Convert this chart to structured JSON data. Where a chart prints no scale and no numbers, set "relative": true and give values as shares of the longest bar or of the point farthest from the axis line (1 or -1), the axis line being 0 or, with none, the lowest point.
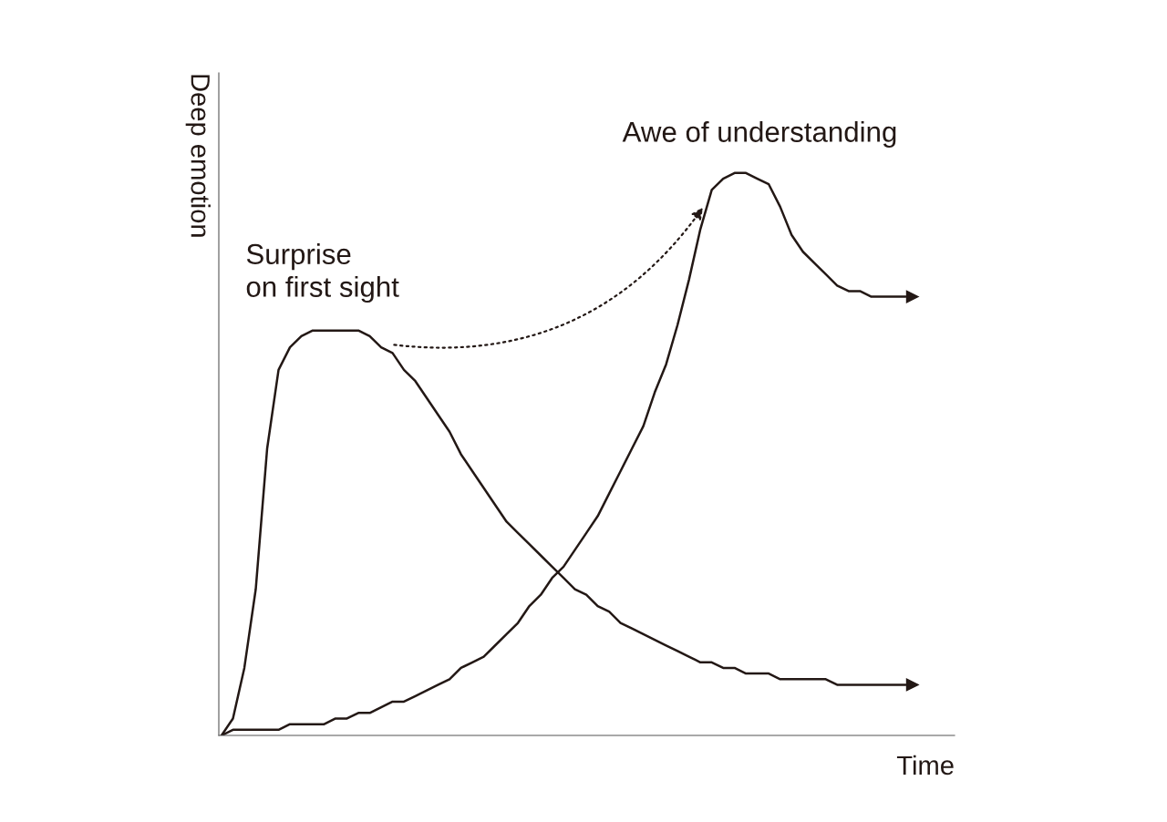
{
  "chart_data": {
    "type": "line",
    "relative": true,
    "xlabel": "Time",
    "ylabel": "Deep emotion",
    "categories": [
      null,
      null,
      null,
      null,
      null,
      null,
      null,
      null,
      null,
      null,
      null,
      null,
      null,
      null,
      null,
      null,
      null,
      null,
      null,
      null,
      null,
      null,
      null,
      null,
      null,
      null,
      null,
      null,
      null,
      null,
      null,
      null,
      null,
      null,
      null,
      null,
      null,
      null,
      null,
      null,
      null,
      null,
      null,
      null,
      null,
      null,
      null,
      null,
      null,
      null,
      null,
      null,
      null,
      null,
      null,
      null,
      null,
      null,
      null,
      null,
      null
    ],
    "series": [
      {
        "name": "Surprise\non first sight",
        "color": "#231815",
        "values": [
          0,
          0.03,
          0.12,
          0.26,
          0.51,
          0.65,
          0.69,
          0.71,
          0.72,
          0.72,
          0.72,
          0.72,
          0.72,
          0.71,
          0.69,
          0.68,
          0.65,
          0.63,
          0.6,
          0.57,
          0.54,
          0.5,
          0.47,
          0.44,
          0.41,
          0.38,
          0.36,
          0.34,
          0.32,
          0.3,
          0.28,
          0.26,
          0.25,
          0.23,
          0.22,
          0.2,
          0.19,
          0.18,
          0.17,
          0.16,
          0.15,
          0.14,
          0.13,
          0.13,
          0.12,
          0.12,
          0.11,
          0.11,
          0.11,
          0.1,
          0.1,
          0.1,
          0.1,
          0.1,
          0.09,
          0.09,
          0.09,
          0.09,
          0.09,
          0.09,
          0.09
        ]
      },
      {
        "name": "Awe of understanding",
        "color": "#231815",
        "values": [
          0,
          0.01,
          0.01,
          0.01,
          0.01,
          0.01,
          0.02,
          0.02,
          0.02,
          0.02,
          0.03,
          0.03,
          0.04,
          0.04,
          0.05,
          0.06,
          0.06,
          0.07,
          0.08,
          0.09,
          0.1,
          0.12,
          0.13,
          0.14,
          0.16,
          0.18,
          0.2,
          0.23,
          0.25,
          0.28,
          0.3,
          0.33,
          0.36,
          0.39,
          0.43,
          0.47,
          0.51,
          0.55,
          0.61,
          0.66,
          0.73,
          0.81,
          0.9,
          0.97,
          0.99,
          1,
          1,
          0.99,
          0.98,
          0.94,
          0.89,
          0.86,
          0.84,
          0.82,
          0.8,
          0.79,
          0.79,
          0.78,
          0.78,
          0.78,
          0.78
        ]
      }
    ],
    "line_style": "solid",
    "marker": "none",
    "legend": false
  }
}
